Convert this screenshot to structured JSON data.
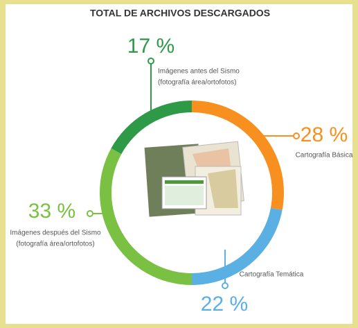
{
  "chart_data": {
    "type": "donut",
    "title": "TOTAL DE ARCHIVOS DESCARGADOS",
    "categories": [
      [
        "Cartografía Básica"
      ],
      [
        "Cartografía Temática"
      ],
      [
        "Imágenes después del Sismo",
        "(fotografía área/ortofotos)"
      ],
      [
        "Imágenes antes del Sismo",
        "(fotografía área/ortofotos)"
      ]
    ],
    "values": [
      28,
      22,
      33,
      17
    ],
    "value_labels": [
      "28 %",
      "22 %",
      "33 %",
      "17 %"
    ],
    "colors": [
      "#f7901e",
      "#5aafe3",
      "#7ac143",
      "#2e9a47"
    ]
  }
}
